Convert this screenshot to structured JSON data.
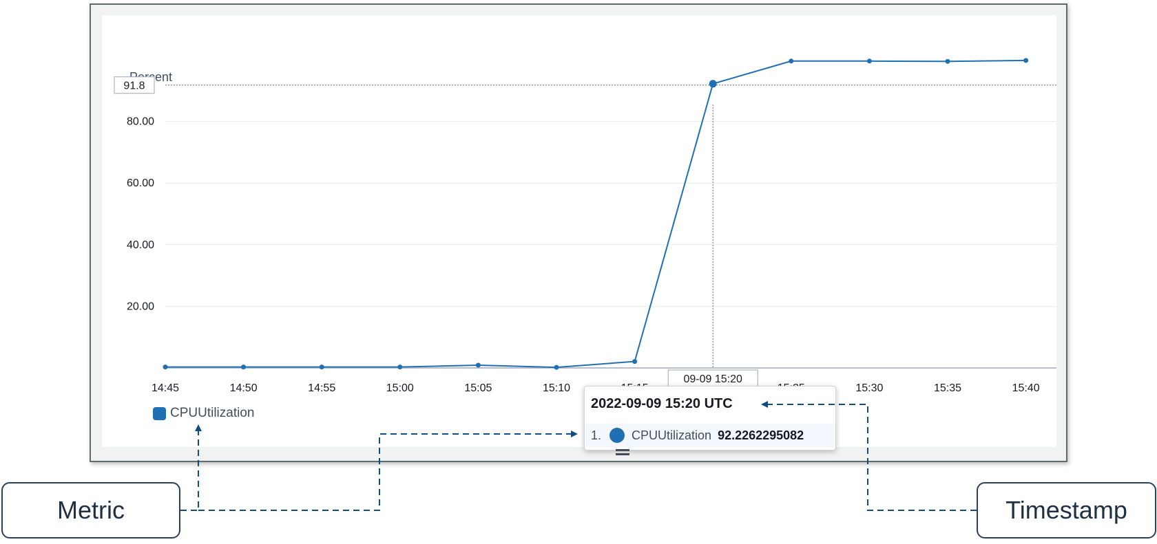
{
  "chart_data": {
    "type": "line",
    "ylabel": "Percent",
    "x": [
      "14:45",
      "14:50",
      "14:55",
      "15:00",
      "15:05",
      "15:10",
      "15:15",
      "15:20",
      "15:25",
      "15:30",
      "15:35",
      "15:40"
    ],
    "series": [
      {
        "name": "CPUUtilization",
        "color": "#1f6fb2",
        "values": [
          0.3,
          0.3,
          0.3,
          0.3,
          0.9,
          0.2,
          2.1,
          92.23,
          99.6,
          99.6,
          99.5,
          99.8
        ]
      }
    ],
    "yticks": [
      "80.00",
      "60.00",
      "40.00",
      "20.00"
    ],
    "ytick_values": [
      80,
      60,
      40,
      20
    ],
    "ylim": [
      0,
      100
    ],
    "grid": true,
    "crosshair": {
      "x": "15:20",
      "x_label": "09-09 15:20",
      "y": 91.8,
      "y_label": "91.8"
    }
  },
  "tooltip": {
    "title": "2022-09-09 15:20 UTC",
    "index": "1.",
    "metric": "CPUUtilization",
    "value": "92.2262295082"
  },
  "callouts": {
    "metric": "Metric",
    "timestamp": "Timestamp"
  },
  "colors": {
    "series": "#1f6fb2",
    "annotation": "#0f4c81"
  }
}
